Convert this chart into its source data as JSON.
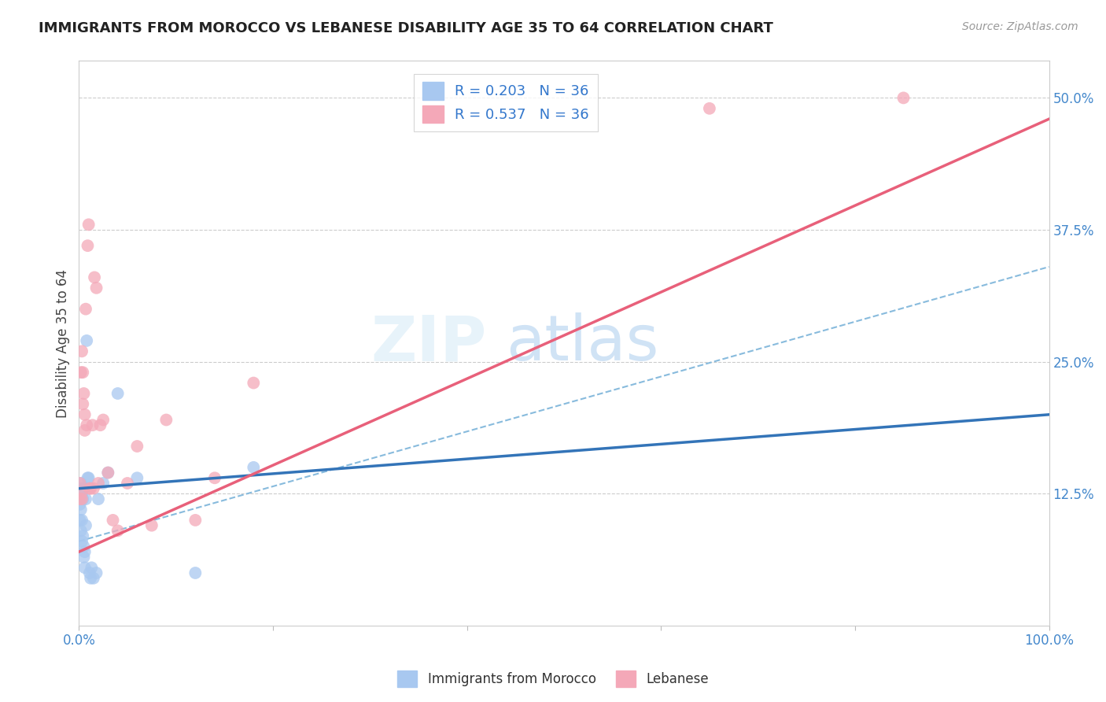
{
  "title": "IMMIGRANTS FROM MOROCCO VS LEBANESE DISABILITY AGE 35 TO 64 CORRELATION CHART",
  "source": "Source: ZipAtlas.com",
  "ylabel": "Disability Age 35 to 64",
  "ytick_labels": [
    "12.5%",
    "25.0%",
    "37.5%",
    "50.0%"
  ],
  "ytick_values": [
    0.125,
    0.25,
    0.375,
    0.5
  ],
  "xlim": [
    0.0,
    1.0
  ],
  "ylim": [
    0.0,
    0.535
  ],
  "morocco_color": "#a8c8f0",
  "lebanese_color": "#f4a8b8",
  "morocco_line_color": "#3374b8",
  "lebanese_line_color": "#e8607a",
  "dashed_line_color": "#88bbdd",
  "legend_morocco_label": "R = 0.203   N = 36",
  "legend_lebanese_label": "R = 0.537   N = 36",
  "legend_label_morocco": "Immigrants from Morocco",
  "legend_label_lebanese": "Lebanese",
  "watermark_zip": "ZIP",
  "watermark_atlas": "atlas",
  "morocco_line_x0": 0.0,
  "morocco_line_y0": 0.13,
  "morocco_line_x1": 1.0,
  "morocco_line_y1": 0.2,
  "lebanese_line_x0": 0.0,
  "lebanese_line_y0": 0.07,
  "lebanese_line_x1": 1.0,
  "lebanese_line_y1": 0.48,
  "dashed_line_x0": 0.0,
  "dashed_line_y0": 0.08,
  "dashed_line_x1": 1.0,
  "dashed_line_y1": 0.34,
  "morocco_x": [
    0.001,
    0.001,
    0.001,
    0.001,
    0.002,
    0.002,
    0.002,
    0.002,
    0.003,
    0.003,
    0.003,
    0.004,
    0.004,
    0.004,
    0.005,
    0.005,
    0.005,
    0.006,
    0.006,
    0.007,
    0.007,
    0.008,
    0.009,
    0.01,
    0.011,
    0.012,
    0.013,
    0.015,
    0.018,
    0.02,
    0.025,
    0.03,
    0.04,
    0.06,
    0.12,
    0.18
  ],
  "morocco_y": [
    0.13,
    0.12,
    0.115,
    0.1,
    0.135,
    0.12,
    0.11,
    0.09,
    0.125,
    0.1,
    0.08,
    0.13,
    0.12,
    0.085,
    0.075,
    0.065,
    0.13,
    0.07,
    0.055,
    0.095,
    0.12,
    0.27,
    0.14,
    0.14,
    0.05,
    0.045,
    0.055,
    0.045,
    0.05,
    0.12,
    0.135,
    0.145,
    0.22,
    0.14,
    0.05,
    0.15
  ],
  "lebanese_x": [
    0.001,
    0.001,
    0.002,
    0.002,
    0.003,
    0.003,
    0.004,
    0.004,
    0.005,
    0.006,
    0.006,
    0.007,
    0.008,
    0.009,
    0.01,
    0.011,
    0.012,
    0.014,
    0.015,
    0.016,
    0.018,
    0.02,
    0.022,
    0.025,
    0.03,
    0.035,
    0.04,
    0.05,
    0.06,
    0.075,
    0.09,
    0.12,
    0.14,
    0.18,
    0.65,
    0.85
  ],
  "lebanese_y": [
    0.135,
    0.12,
    0.125,
    0.24,
    0.12,
    0.26,
    0.24,
    0.21,
    0.22,
    0.2,
    0.185,
    0.3,
    0.19,
    0.36,
    0.38,
    0.13,
    0.13,
    0.19,
    0.13,
    0.33,
    0.32,
    0.135,
    0.19,
    0.195,
    0.145,
    0.1,
    0.09,
    0.135,
    0.17,
    0.095,
    0.195,
    0.1,
    0.14,
    0.23,
    0.49,
    0.5
  ]
}
